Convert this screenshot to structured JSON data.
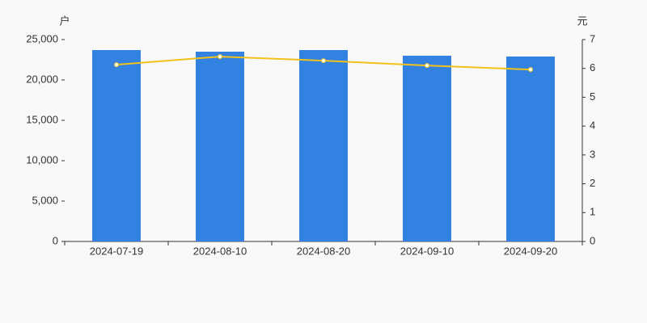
{
  "chart_data": {
    "type": "bar",
    "y_label": "户",
    "y2_label": "元",
    "categories": [
      "2024-07-19",
      "2024-08-10",
      "2024-08-20",
      "2024-09-10",
      "2024-09-20"
    ],
    "series": [
      {
        "type": "bar",
        "color": "#3382e2",
        "values": [
          23700,
          23500,
          23700,
          23000,
          22900
        ]
      },
      {
        "type": "line",
        "axis": "y2",
        "color": "#f2c21b",
        "values": [
          6.13,
          6.41,
          6.27,
          6.1,
          5.96
        ]
      }
    ],
    "ylim": [
      0,
      25000
    ],
    "yticks": [
      0,
      {
        "value": 5000,
        "label": "5,000"
      },
      {
        "value": 10000,
        "label": "10,000"
      },
      {
        "value": 15000,
        "label": "15,000"
      },
      {
        "value": 20000,
        "label": "20,000"
      },
      {
        "value": 25000,
        "label": "25,000"
      }
    ],
    "y2lim": [
      0,
      7
    ],
    "y2ticks": [
      0,
      1,
      2,
      3,
      4,
      5,
      6,
      7
    ]
  }
}
